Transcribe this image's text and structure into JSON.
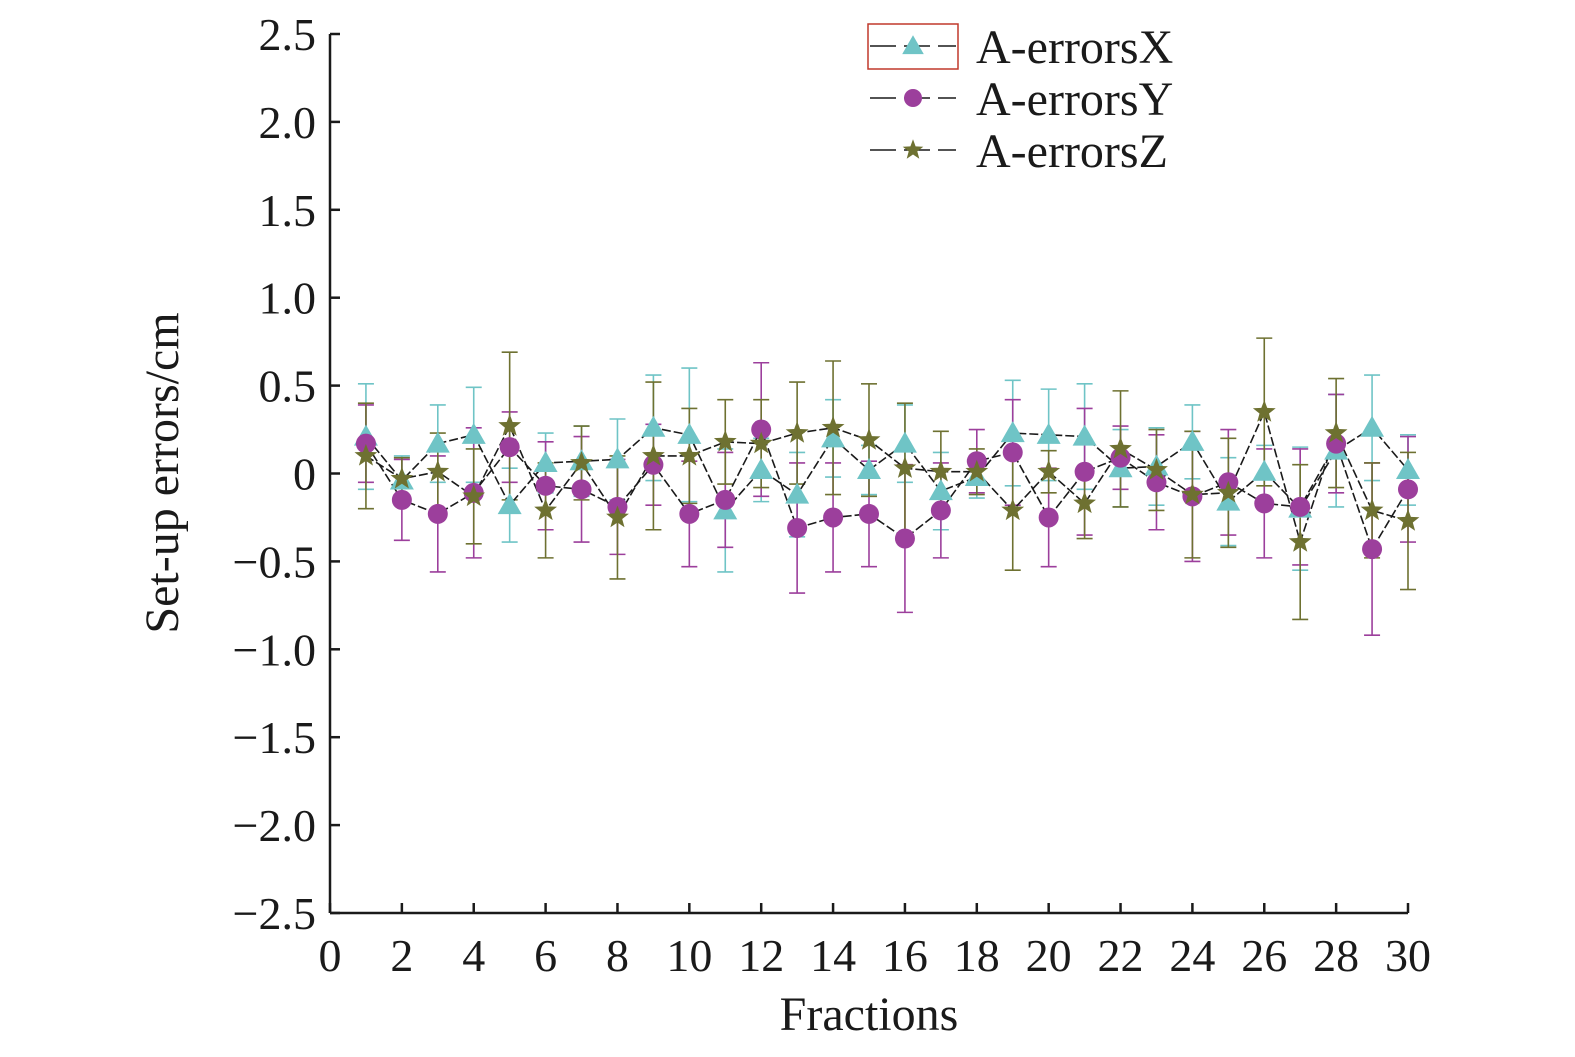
{
  "chart_data": {
    "type": "scatter",
    "title": "",
    "xlabel": "Fractions",
    "ylabel": "Set-up errors/cm",
    "xlim": [
      0,
      30
    ],
    "ylim": [
      -2.5,
      2.5
    ],
    "x_ticks": [
      "0",
      "2",
      "4",
      "6",
      "8",
      "10",
      "12",
      "14",
      "16",
      "18",
      "20",
      "22",
      "24",
      "26",
      "28",
      "30"
    ],
    "y_ticks": [
      "2.5",
      "2.0",
      "1.5",
      "1.0",
      "0.5",
      "0",
      "−0.5",
      "−1.0",
      "−1.5",
      "−2.0",
      "−2.5"
    ],
    "y_tick_values": [
      2.5,
      2.0,
      1.5,
      1.0,
      0.5,
      0,
      -0.5,
      -1.0,
      -1.5,
      -2.0,
      -2.5
    ],
    "x_tick_values": [
      0,
      2,
      4,
      6,
      8,
      10,
      12,
      14,
      16,
      18,
      20,
      22,
      24,
      26,
      28,
      30
    ],
    "legend_position": "top-right",
    "x": [
      1,
      2,
      3,
      4,
      5,
      6,
      7,
      8,
      9,
      10,
      11,
      12,
      13,
      14,
      15,
      16,
      17,
      18,
      19,
      20,
      21,
      22,
      23,
      24,
      25,
      26,
      27,
      28,
      29,
      30
    ],
    "series": [
      {
        "name": "A-errorsX",
        "marker": "triangle",
        "color": "#6fc4c6",
        "values": [
          0.21,
          -0.04,
          0.17,
          0.22,
          -0.18,
          0.06,
          0.07,
          0.08,
          0.26,
          0.22,
          -0.21,
          0.02,
          -0.12,
          0.2,
          0.02,
          0.17,
          -0.1,
          -0.02,
          0.23,
          0.22,
          0.21,
          0.03,
          0.04,
          0.18,
          -0.16,
          0.01,
          -0.2,
          0.13,
          0.26,
          0.02
        ],
        "errors": [
          0.3,
          0.14,
          0.22,
          0.27,
          0.21,
          0.17,
          0.2,
          0.23,
          0.3,
          0.38,
          0.35,
          0.18,
          0.24,
          0.22,
          0.14,
          0.22,
          0.22,
          0.12,
          0.3,
          0.26,
          0.3,
          0.22,
          0.22,
          0.21,
          0.25,
          0.15,
          0.35,
          0.32,
          0.3,
          0.2
        ]
      },
      {
        "name": "A-errorsY",
        "marker": "circle",
        "color": "#9c3f9c",
        "values": [
          0.17,
          -0.15,
          -0.23,
          -0.11,
          0.15,
          -0.07,
          -0.09,
          -0.19,
          0.05,
          -0.23,
          -0.15,
          0.25,
          -0.31,
          -0.25,
          -0.23,
          -0.37,
          -0.21,
          0.07,
          0.12,
          -0.25,
          0.01,
          0.09,
          -0.05,
          -0.13,
          -0.05,
          -0.17,
          -0.19,
          0.17,
          -0.43,
          -0.09
        ],
        "errors": [
          0.22,
          0.23,
          0.33,
          0.37,
          0.2,
          0.25,
          0.3,
          0.27,
          0.23,
          0.3,
          0.27,
          0.38,
          0.37,
          0.31,
          0.3,
          0.42,
          0.27,
          0.18,
          0.3,
          0.28,
          0.36,
          0.18,
          0.27,
          0.37,
          0.3,
          0.31,
          0.33,
          0.28,
          0.49,
          0.3
        ]
      },
      {
        "name": "A-errorsZ",
        "marker": "star",
        "color": "#6e7131",
        "values": [
          0.1,
          -0.03,
          0.01,
          -0.13,
          0.27,
          -0.21,
          0.06,
          -0.25,
          0.1,
          0.1,
          0.18,
          0.17,
          0.23,
          0.26,
          0.19,
          0.03,
          0.01,
          0.01,
          -0.21,
          0.01,
          -0.17,
          0.14,
          0.02,
          -0.12,
          -0.11,
          0.35,
          -0.39,
          0.23,
          -0.21,
          -0.27
        ],
        "errors": [
          0.3,
          0.12,
          0.22,
          0.27,
          0.42,
          0.27,
          0.21,
          0.35,
          0.42,
          0.27,
          0.24,
          0.25,
          0.29,
          0.38,
          0.32,
          0.37,
          0.23,
          0.13,
          0.34,
          0.12,
          0.2,
          0.33,
          0.23,
          0.36,
          0.31,
          0.42,
          0.44,
          0.31,
          0.27,
          0.39
        ]
      }
    ]
  }
}
